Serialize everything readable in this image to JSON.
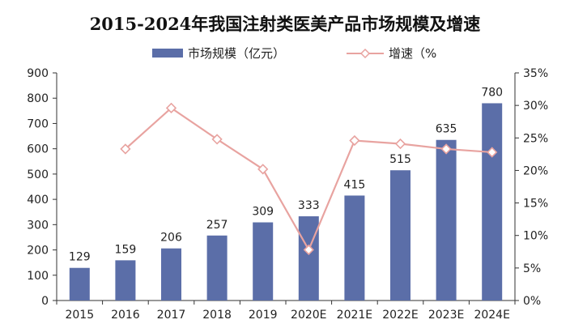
{
  "chart_data": {
    "type": "bar",
    "title": "2015-2024年我国注射类医美产品市场规模及增速",
    "categories": [
      "2015",
      "2016",
      "2017",
      "2018",
      "2019",
      "2020E",
      "2021E",
      "2022E",
      "2023E",
      "2024E"
    ],
    "series": [
      {
        "name": "市场规模（亿元）",
        "type": "bar",
        "axis": "left",
        "color": "#5b6ea8",
        "values": [
          129,
          159,
          206,
          257,
          309,
          333,
          415,
          515,
          635,
          780
        ]
      },
      {
        "name": "增速（%",
        "type": "line",
        "axis": "right",
        "color": "#e8a3a0",
        "values": [
          null,
          23.3,
          29.6,
          24.8,
          20.2,
          7.8,
          24.6,
          24.1,
          23.3,
          22.8
        ]
      }
    ],
    "y_left": {
      "min": 0,
      "max": 900,
      "step": 100
    },
    "y_right": {
      "min": 0,
      "max": 35,
      "step": 5,
      "unit": "%"
    },
    "legend": "top-center",
    "grid": false
  }
}
